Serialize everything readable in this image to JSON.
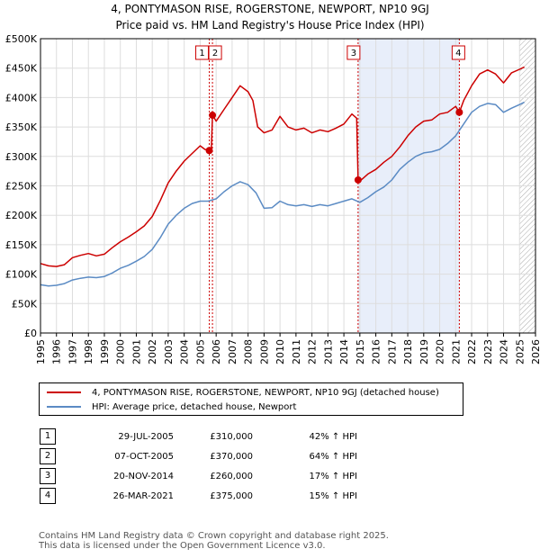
{
  "header": {
    "title": "4, PONTYMASON RISE, ROGERSTONE, NEWPORT, NP10 9GJ",
    "subtitle": "Price paid vs. HM Land Registry's House Price Index (HPI)"
  },
  "legend": {
    "items": [
      {
        "label": "4, PONTYMASON RISE, ROGERSTONE, NEWPORT, NP10 9GJ (detached house)",
        "color": "#cc0000"
      },
      {
        "label": "HPI: Average price, detached house, Newport",
        "color": "#5b8bc4"
      }
    ]
  },
  "transactions": [
    {
      "id": "1",
      "date": "29-JUL-2005",
      "price": "£310,000",
      "hpi": "42% ↑ HPI"
    },
    {
      "id": "2",
      "date": "07-OCT-2005",
      "price": "£370,000",
      "hpi": "64% ↑ HPI"
    },
    {
      "id": "3",
      "date": "20-NOV-2014",
      "price": "£260,000",
      "hpi": "17% ↑ HPI"
    },
    {
      "id": "4",
      "date": "26-MAR-2021",
      "price": "£375,000",
      "hpi": "15% ↑ HPI"
    }
  ],
  "footer": {
    "line1": "Contains HM Land Registry data © Crown copyright and database right 2025.",
    "line2": "This data is licensed under the Open Government Licence v3.0."
  },
  "chart_data": {
    "type": "line",
    "title": "4, PONTYMASON RISE, ROGERSTONE, NEWPORT, NP10 9GJ",
    "subtitle": "Price paid vs. HM Land Registry's House Price Index (HPI)",
    "xlabel": "",
    "ylabel": "",
    "xlim": [
      1995,
      2026
    ],
    "ylim": [
      0,
      500000
    ],
    "x_ticks": [
      1995,
      1996,
      1997,
      1998,
      1999,
      2000,
      2001,
      2002,
      2003,
      2004,
      2005,
      2006,
      2007,
      2008,
      2009,
      2010,
      2011,
      2012,
      2013,
      2014,
      2015,
      2016,
      2017,
      2018,
      2019,
      2020,
      2021,
      2022,
      2023,
      2024,
      2025,
      2026
    ],
    "x_tick_labels": [
      "1995",
      "1996",
      "1997",
      "1998",
      "1999",
      "2000",
      "2001",
      "2002",
      "2003",
      "2004",
      "2005",
      "2006",
      "2007",
      "2008",
      "2009",
      "2010",
      "2011",
      "2012",
      "2013",
      "2014",
      "2015",
      "2016",
      "2017",
      "2018",
      "2019",
      "2020",
      "2021",
      "2022",
      "2023",
      "2024",
      "2025",
      "2026"
    ],
    "y_ticks": [
      0,
      50000,
      100000,
      150000,
      200000,
      250000,
      300000,
      350000,
      400000,
      450000,
      500000
    ],
    "y_tick_labels": [
      "£0",
      "£50K",
      "£100K",
      "£150K",
      "£200K",
      "£250K",
      "£300K",
      "£350K",
      "£400K",
      "£450K",
      "£500K"
    ],
    "grid": true,
    "shaded_regions": [
      {
        "from": 2014.89,
        "to": 2021.23,
        "color": "#e8eefa"
      }
    ],
    "hatched_region": {
      "from": 2025.0,
      "to": 2026.0
    },
    "sale_markers": [
      {
        "label": "1",
        "x": 2005.57,
        "y": 310000
      },
      {
        "label": "2",
        "x": 2005.77,
        "y": 370000
      },
      {
        "label": "3",
        "x": 2014.89,
        "y": 260000
      },
      {
        "label": "4",
        "x": 2021.23,
        "y": 375000
      }
    ],
    "series": [
      {
        "name": "4, PONTYMASON RISE, ROGERSTONE, NEWPORT, NP10 9GJ (detached house)",
        "color": "#cc0000",
        "x": [
          1995.0,
          1995.5,
          1996.0,
          1996.5,
          1997.0,
          1997.5,
          1998.0,
          1998.5,
          1999.0,
          1999.5,
          2000.0,
          2000.5,
          2001.0,
          2001.5,
          2002.0,
          2002.5,
          2003.0,
          2003.5,
          2004.0,
          2004.5,
          2005.0,
          2005.3,
          2005.57,
          2005.7,
          2005.77,
          2006.0,
          2006.5,
          2007.0,
          2007.5,
          2008.0,
          2008.3,
          2008.6,
          2009.0,
          2009.5,
          2010.0,
          2010.5,
          2011.0,
          2011.5,
          2012.0,
          2012.5,
          2013.0,
          2013.5,
          2014.0,
          2014.5,
          2014.8,
          2014.89,
          2015.0,
          2015.5,
          2016.0,
          2016.5,
          2017.0,
          2017.5,
          2018.0,
          2018.5,
          2019.0,
          2019.5,
          2020.0,
          2020.5,
          2021.0,
          2021.23,
          2021.5,
          2022.0,
          2022.5,
          2023.0,
          2023.5,
          2024.0,
          2024.5,
          2025.0,
          2025.3
        ],
        "values": [
          118000,
          114000,
          113000,
          116000,
          128000,
          132000,
          135000,
          131000,
          134000,
          145000,
          155000,
          163000,
          172000,
          182000,
          198000,
          225000,
          255000,
          275000,
          292000,
          305000,
          318000,
          312000,
          310000,
          311000,
          370000,
          360000,
          380000,
          400000,
          420000,
          410000,
          395000,
          350000,
          340000,
          345000,
          368000,
          350000,
          345000,
          348000,
          340000,
          345000,
          342000,
          348000,
          355000,
          372000,
          365000,
          260000,
          258000,
          270000,
          278000,
          290000,
          300000,
          316000,
          335000,
          350000,
          360000,
          362000,
          372000,
          375000,
          385000,
          375000,
          395000,
          420000,
          440000,
          447000,
          440000,
          425000,
          442000,
          448000,
          452000
        ]
      },
      {
        "name": "HPI: Average price, detached house, Newport",
        "color": "#5b8bc4",
        "x": [
          1995.0,
          1995.5,
          1996.0,
          1996.5,
          1997.0,
          1997.5,
          1998.0,
          1998.5,
          1999.0,
          1999.5,
          2000.0,
          2000.5,
          2001.0,
          2001.5,
          2002.0,
          2002.5,
          2003.0,
          2003.5,
          2004.0,
          2004.5,
          2005.0,
          2005.5,
          2006.0,
          2006.5,
          2007.0,
          2007.5,
          2008.0,
          2008.5,
          2009.0,
          2009.5,
          2010.0,
          2010.5,
          2011.0,
          2011.5,
          2012.0,
          2012.5,
          2013.0,
          2013.5,
          2014.0,
          2014.5,
          2015.0,
          2015.5,
          2016.0,
          2016.5,
          2017.0,
          2017.5,
          2018.0,
          2018.5,
          2019.0,
          2019.5,
          2020.0,
          2020.5,
          2021.0,
          2021.5,
          2022.0,
          2022.5,
          2023.0,
          2023.5,
          2024.0,
          2024.5,
          2025.0,
          2025.3
        ],
        "values": [
          82000,
          80000,
          81000,
          84000,
          90000,
          93000,
          95000,
          94000,
          96000,
          102000,
          110000,
          115000,
          122000,
          130000,
          142000,
          162000,
          185000,
          200000,
          212000,
          220000,
          224000,
          224000,
          228000,
          240000,
          250000,
          257000,
          252000,
          238000,
          212000,
          213000,
          224000,
          218000,
          216000,
          218000,
          215000,
          218000,
          216000,
          220000,
          224000,
          228000,
          222000,
          230000,
          240000,
          248000,
          260000,
          278000,
          290000,
          300000,
          306000,
          308000,
          312000,
          322000,
          335000,
          355000,
          375000,
          385000,
          390000,
          388000,
          375000,
          382000,
          388000,
          392000
        ]
      }
    ]
  }
}
